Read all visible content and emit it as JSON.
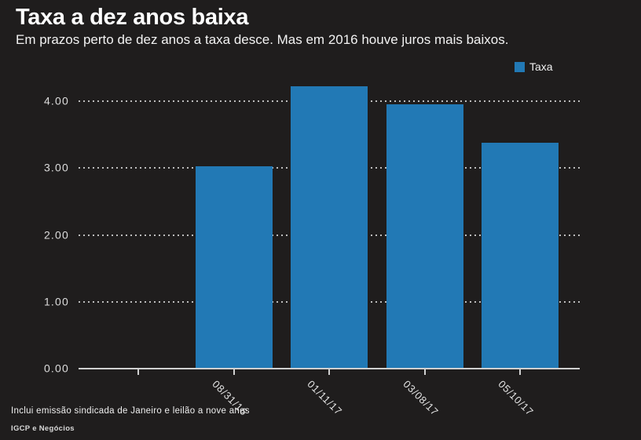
{
  "title": "Taxa a dez anos baixa",
  "subtitle": "Em prazos perto de dez anos a taxa desce. Mas em 2016 houve juros mais baixos.",
  "legend": {
    "label": "Taxa"
  },
  "footnote": "Inclui emissão sindicada de Janeiro e leilão a nove anos",
  "source": "IGCP e Negócios",
  "colors": {
    "background": "#1f1d1d",
    "bar": "#2279b5",
    "grid_dots": "#bdbdbd",
    "axis": "#d0d0d0",
    "title_text": "#ffffff",
    "body_text": "#f0f0f0"
  },
  "chart_data": {
    "type": "bar",
    "title": "Taxa a dez anos baixa",
    "subtitle": "Em prazos perto de dez anos a taxa desce. Mas em 2016 houve juros mais baixos.",
    "categories": [
      "08/31/16",
      "01/11/17",
      "03/08/17",
      "05/10/17"
    ],
    "series": [
      {
        "name": "Taxa",
        "values": [
          3.03,
          4.22,
          3.95,
          3.38
        ]
      }
    ],
    "y_tick_labels": [
      "0.00",
      "1.00",
      "2.00",
      "3.00",
      "4.00"
    ],
    "ylim": [
      0,
      4.5
    ],
    "xlabel": "",
    "ylabel": "",
    "grid": "horizontal-dotted",
    "legend_position": "top-right",
    "legend_entries": [
      "Taxa"
    ],
    "x_label_rotation_deg": 45,
    "leading_unlabeled_tick": true,
    "bar_color": "#2279b5",
    "background_color": "#1f1d1d"
  }
}
